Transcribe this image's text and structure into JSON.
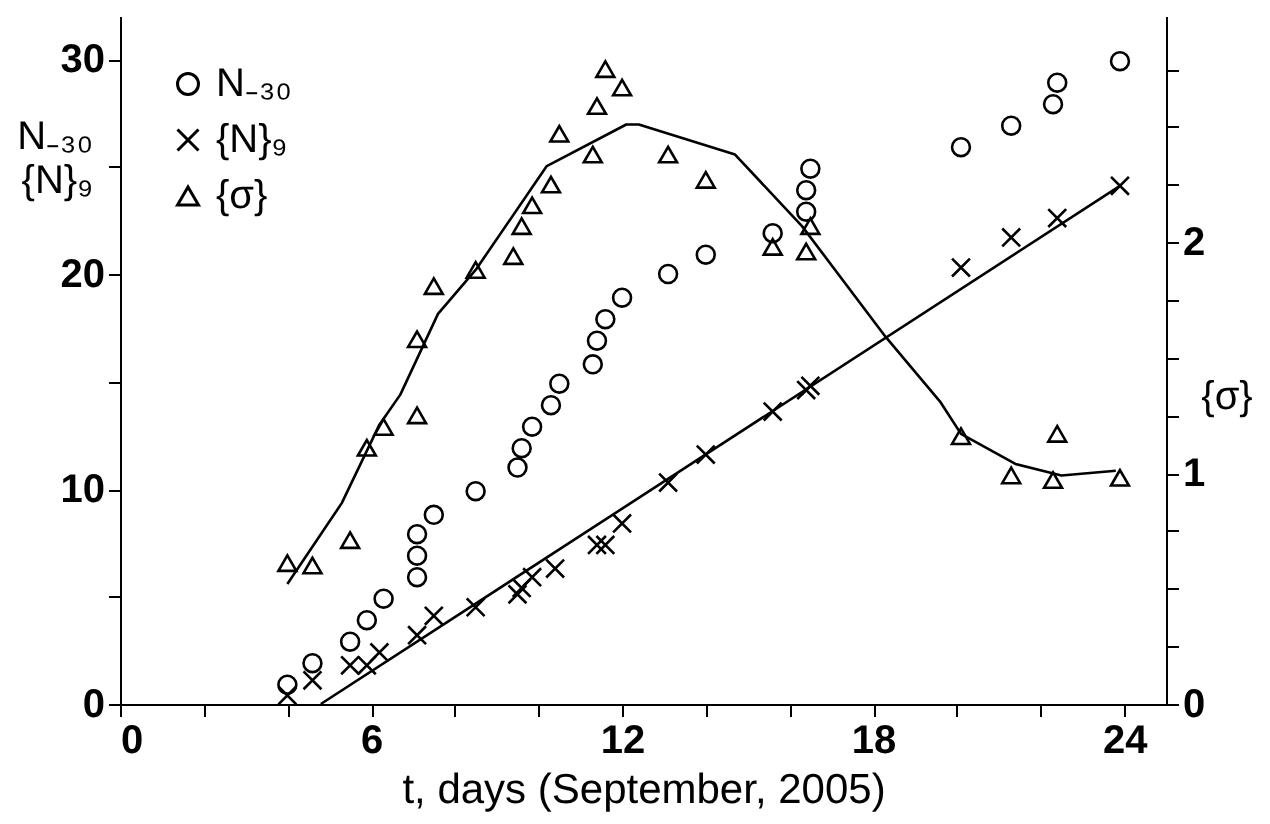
{
  "chart_data": {
    "type": "scatter",
    "xlabel": "t, days (September, 2005)",
    "ylabel": "N₋₃₀\n{N}₉",
    "y2label": "{σ}",
    "xlim": [
      0,
      25
    ],
    "xticks": [
      0,
      {
        "value": 2,
        "label": null
      },
      {
        "value": 4,
        "label": null
      },
      6,
      {
        "value": 8,
        "label": null
      },
      {
        "value": 10,
        "label": null
      },
      12,
      {
        "value": 14,
        "label": null
      },
      {
        "value": 16,
        "label": null
      },
      18,
      {
        "value": 20,
        "label": null
      },
      {
        "value": 22,
        "label": null
      },
      24
    ],
    "ylim": [
      0,
      32
    ],
    "yticks": [
      0,
      {
        "value": 5,
        "label": null
      },
      10,
      {
        "value": 15,
        "label": null
      },
      20,
      {
        "value": 25,
        "label": null
      },
      30
    ],
    "y2lim": [
      0,
      2.98
    ],
    "y2ticks": [
      0,
      {
        "value": 0.25,
        "label": null
      },
      {
        "value": 0.5,
        "label": null
      },
      {
        "value": 0.75,
        "label": null
      },
      1,
      {
        "value": 1.25,
        "label": null
      },
      {
        "value": 1.5,
        "label": null
      },
      {
        "value": 1.75,
        "label": null
      },
      2,
      {
        "value": 2.25,
        "label": null
      },
      {
        "value": 2.5,
        "label": null
      },
      {
        "value": 2.75,
        "label": null
      }
    ],
    "grid": false,
    "legend": "top left",
    "series": [
      {
        "name": "N₋₃₀",
        "marker": "circle",
        "color": "#000000",
        "x": [
          4.0,
          4.6,
          5.5,
          5.9,
          6.3,
          7.1,
          7.1,
          7.1,
          7.5,
          8.5,
          9.5,
          9.6,
          9.85,
          10.3,
          10.5,
          11.3,
          11.4,
          11.6,
          12.0,
          13.1,
          14.0,
          15.6,
          16.4,
          16.4,
          16.5,
          20.1,
          21.3,
          22.3,
          22.4,
          23.9
        ],
        "values": [
          0.9,
          1.9,
          2.9,
          3.9,
          4.9,
          5.9,
          6.9,
          7.9,
          8.8,
          9.9,
          11.0,
          11.9,
          12.9,
          13.9,
          14.9,
          15.8,
          16.9,
          17.9,
          18.9,
          20.0,
          20.9,
          21.9,
          22.9,
          23.9,
          24.9,
          25.9,
          26.9,
          27.9,
          28.9,
          29.9
        ]
      },
      {
        "name": "{N}₉",
        "marker": "cross",
        "color": "#000000",
        "x": [
          4.0,
          4.6,
          5.5,
          5.9,
          6.2,
          7.1,
          7.5,
          8.5,
          9.5,
          9.6,
          9.85,
          10.4,
          11.4,
          11.6,
          12.0,
          13.1,
          14.0,
          15.6,
          16.4,
          16.5,
          20.1,
          21.3,
          22.4,
          23.9
        ],
        "values": [
          0.4,
          1.1,
          1.8,
          1.8,
          2.4,
          3.2,
          4.1,
          4.5,
          5.1,
          5.4,
          5.9,
          6.3,
          7.4,
          7.4,
          8.4,
          10.3,
          11.6,
          13.6,
          14.6,
          14.8,
          20.3,
          21.7,
          22.6,
          24.1
        ]
      },
      {
        "name": "{σ}",
        "marker": "triangle",
        "axis": "y2",
        "color": "#000000",
        "x": [
          4.0,
          4.6,
          5.5,
          5.9,
          6.3,
          7.1,
          7.1,
          7.5,
          8.5,
          9.4,
          9.6,
          9.85,
          10.3,
          10.5,
          11.3,
          11.4,
          11.6,
          12.0,
          13.1,
          14.0,
          15.6,
          16.4,
          16.5,
          20.1,
          21.3,
          22.3,
          22.4,
          23.9
        ],
        "values": [
          0.61,
          0.6,
          0.71,
          1.11,
          1.2,
          1.25,
          1.58,
          1.81,
          1.88,
          1.94,
          2.07,
          2.16,
          2.25,
          2.47,
          2.38,
          2.59,
          2.75,
          2.67,
          2.38,
          2.27,
          1.98,
          1.96,
          2.07,
          1.16,
          0.99,
          0.97,
          1.17,
          0.98
        ]
      },
      {
        "type": "line",
        "line_style": "solid",
        "color": "#000000",
        "x": [
          4.8,
          23.9
        ],
        "values": [
          0,
          24.1
        ]
      },
      {
        "type": "line",
        "line_style": "solid",
        "axis": "y2",
        "color": "#000000",
        "x": [
          4.0,
          5.3,
          6.2,
          6.7,
          7.6,
          8.5,
          10.2,
          12.1,
          12.4,
          14.7,
          16.3,
          18.3,
          19.6,
          20.1,
          21.4,
          22.5,
          23.8
        ],
        "values": [
          0.52,
          0.87,
          1.21,
          1.34,
          1.69,
          1.88,
          2.33,
          2.51,
          2.51,
          2.38,
          2.07,
          1.59,
          1.31,
          1.17,
          1.04,
          0.99,
          1.01
        ]
      }
    ]
  }
}
